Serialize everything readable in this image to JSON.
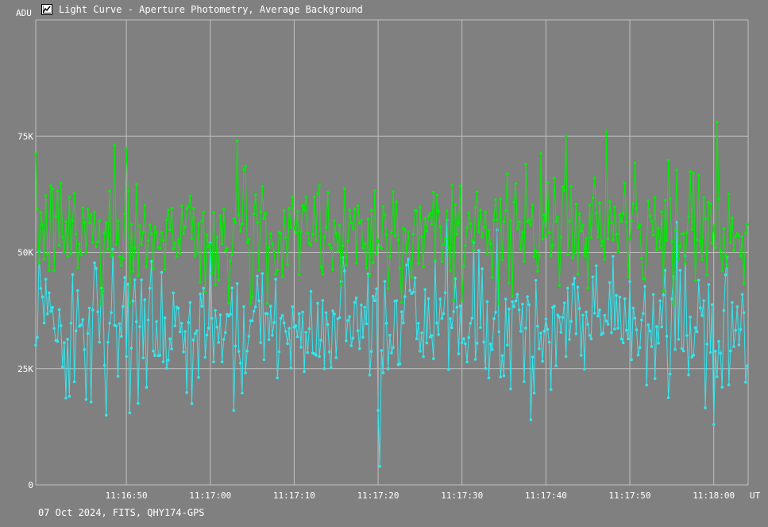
{
  "window": {
    "title": "Light Curve - Aperture Photometry, Average Background",
    "icon": "chart-icon"
  },
  "footer": {
    "info": "07 Oct 2024, FITS, QHY174-GPS"
  },
  "colors": {
    "background": "#808080",
    "grid": "#c0c0c0",
    "series_green": "#00ee00",
    "series_cyan": "#33e6ee",
    "text": "#ffffff"
  },
  "chart_data": {
    "type": "line",
    "ylabel": "ADU",
    "xlabel": "UT",
    "ylim": [
      0,
      100000
    ],
    "xlim": [
      "11:16:39.2",
      "11:18:04.1"
    ],
    "y_ticks": [
      {
        "value": 0,
        "label": "0"
      },
      {
        "value": 25000,
        "label": "25K"
      },
      {
        "value": 50000,
        "label": "50K"
      },
      {
        "value": 75000,
        "label": "75K"
      }
    ],
    "x_ticks": [
      {
        "value": "11:16:50",
        "label": "11:16:50"
      },
      {
        "value": "11:17:00",
        "label": "11:17:00"
      },
      {
        "value": "11:17:10",
        "label": "11:17:10"
      },
      {
        "value": "11:17:20",
        "label": "11:17:20"
      },
      {
        "value": "11:17:30",
        "label": "11:17:30"
      },
      {
        "value": "11:17:40",
        "label": "11:17:40"
      },
      {
        "value": "11:17:50",
        "label": "11:17:50"
      },
      {
        "value": "11:18:00",
        "label": "11:18:00"
      }
    ],
    "grid": true,
    "markers": true,
    "sampling_interval_s": 0.2,
    "series": [
      {
        "color": "#00ee00",
        "mean": 54500,
        "std": 6000,
        "y_min": 35000,
        "y_max": 78000,
        "peaks": [
          {
            "x": "11:16:48.6",
            "y": 73000
          },
          {
            "x": "11:17:03.2",
            "y": 74000
          },
          {
            "x": "11:17:47.1",
            "y": 76000
          },
          {
            "x": "11:18:00.3",
            "y": 78000
          }
        ]
      },
      {
        "color": "#33e6ee",
        "mean": 34500,
        "std": 6500,
        "y_min": 4000,
        "y_max": 61000,
        "troughs": [
          {
            "x": "11:16:47.5",
            "y": 15000
          },
          {
            "x": "11:17:02.8",
            "y": 16000
          },
          {
            "x": "11:17:20.0",
            "y": 16000
          },
          {
            "x": "11:17:20.2",
            "y": 4000
          },
          {
            "x": "11:17:38.1",
            "y": 14000
          },
          {
            "x": "11:18:00.0",
            "y": 13000
          }
        ]
      }
    ]
  }
}
